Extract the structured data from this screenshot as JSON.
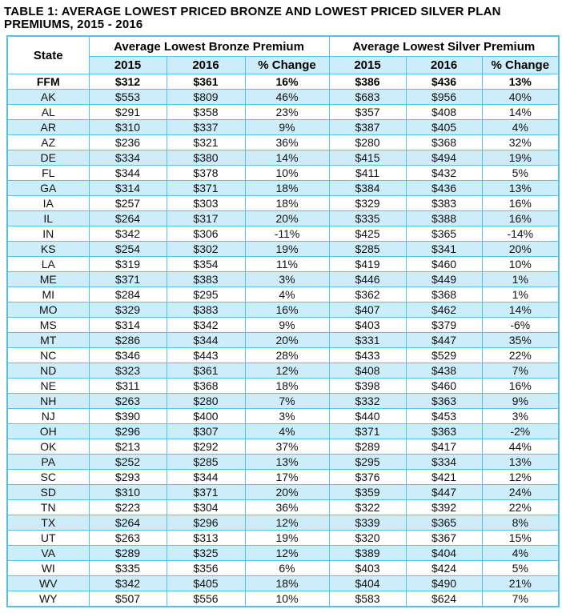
{
  "title": "TABLE 1: AVERAGE LOWEST PRICED BRONZE AND LOWEST PRICED SILVER PLAN PREMIUMS, 2015 - 2016",
  "colors": {
    "table_border": "#56C1E8",
    "row_highlight": "#CDEDFB",
    "text": "#000000"
  },
  "table": {
    "state_header": "State",
    "group_headers": [
      "Average Lowest Bronze Premium",
      "Average Lowest Silver Premium"
    ],
    "sub_headers": [
      "2015",
      "2016",
      "% Change",
      "2015",
      "2016",
      "% Change"
    ],
    "emphasized_row": "FFM",
    "rows": [
      [
        "FFM",
        "$312",
        "$361",
        "16%",
        "$386",
        "$436",
        "13%"
      ],
      [
        "AK",
        "$553",
        "$809",
        "46%",
        "$683",
        "$956",
        "40%"
      ],
      [
        "AL",
        "$291",
        "$358",
        "23%",
        "$357",
        "$408",
        "14%"
      ],
      [
        "AR",
        "$310",
        "$337",
        "9%",
        "$387",
        "$405",
        "4%"
      ],
      [
        "AZ",
        "$236",
        "$321",
        "36%",
        "$280",
        "$368",
        "32%"
      ],
      [
        "DE",
        "$334",
        "$380",
        "14%",
        "$415",
        "$494",
        "19%"
      ],
      [
        "FL",
        "$344",
        "$378",
        "10%",
        "$411",
        "$432",
        "5%"
      ],
      [
        "GA",
        "$314",
        "$371",
        "18%",
        "$384",
        "$436",
        "13%"
      ],
      [
        "IA",
        "$257",
        "$303",
        "18%",
        "$329",
        "$383",
        "16%"
      ],
      [
        "IL",
        "$264",
        "$317",
        "20%",
        "$335",
        "$388",
        "16%"
      ],
      [
        "IN",
        "$342",
        "$306",
        "-11%",
        "$425",
        "$365",
        "-14%"
      ],
      [
        "KS",
        "$254",
        "$302",
        "19%",
        "$285",
        "$341",
        "20%"
      ],
      [
        "LA",
        "$319",
        "$354",
        "11%",
        "$419",
        "$460",
        "10%"
      ],
      [
        "ME",
        "$371",
        "$383",
        "3%",
        "$446",
        "$449",
        "1%"
      ],
      [
        "MI",
        "$284",
        "$295",
        "4%",
        "$362",
        "$368",
        "1%"
      ],
      [
        "MO",
        "$329",
        "$383",
        "16%",
        "$407",
        "$462",
        "14%"
      ],
      [
        "MS",
        "$314",
        "$342",
        "9%",
        "$403",
        "$379",
        "-6%"
      ],
      [
        "MT",
        "$286",
        "$344",
        "20%",
        "$331",
        "$447",
        "35%"
      ],
      [
        "NC",
        "$346",
        "$443",
        "28%",
        "$433",
        "$529",
        "22%"
      ],
      [
        "ND",
        "$323",
        "$361",
        "12%",
        "$408",
        "$438",
        "7%"
      ],
      [
        "NE",
        "$311",
        "$368",
        "18%",
        "$398",
        "$460",
        "16%"
      ],
      [
        "NH",
        "$263",
        "$280",
        "7%",
        "$332",
        "$363",
        "9%"
      ],
      [
        "NJ",
        "$390",
        "$400",
        "3%",
        "$440",
        "$453",
        "3%"
      ],
      [
        "OH",
        "$296",
        "$307",
        "4%",
        "$371",
        "$363",
        "-2%"
      ],
      [
        "OK",
        "$213",
        "$292",
        "37%",
        "$289",
        "$417",
        "44%"
      ],
      [
        "PA",
        "$252",
        "$285",
        "13%",
        "$295",
        "$334",
        "13%"
      ],
      [
        "SC",
        "$293",
        "$344",
        "17%",
        "$376",
        "$421",
        "12%"
      ],
      [
        "SD",
        "$310",
        "$371",
        "20%",
        "$359",
        "$447",
        "24%"
      ],
      [
        "TN",
        "$223",
        "$304",
        "36%",
        "$322",
        "$392",
        "22%"
      ],
      [
        "TX",
        "$264",
        "$296",
        "12%",
        "$339",
        "$365",
        "8%"
      ],
      [
        "UT",
        "$263",
        "$313",
        "19%",
        "$320",
        "$367",
        "15%"
      ],
      [
        "VA",
        "$289",
        "$325",
        "12%",
        "$389",
        "$404",
        "4%"
      ],
      [
        "WI",
        "$335",
        "$356",
        "6%",
        "$403",
        "$424",
        "5%"
      ],
      [
        "WV",
        "$342",
        "$405",
        "18%",
        "$404",
        "$490",
        "21%"
      ],
      [
        "WY",
        "$507",
        "$556",
        "10%",
        "$583",
        "$624",
        "7%"
      ]
    ]
  }
}
